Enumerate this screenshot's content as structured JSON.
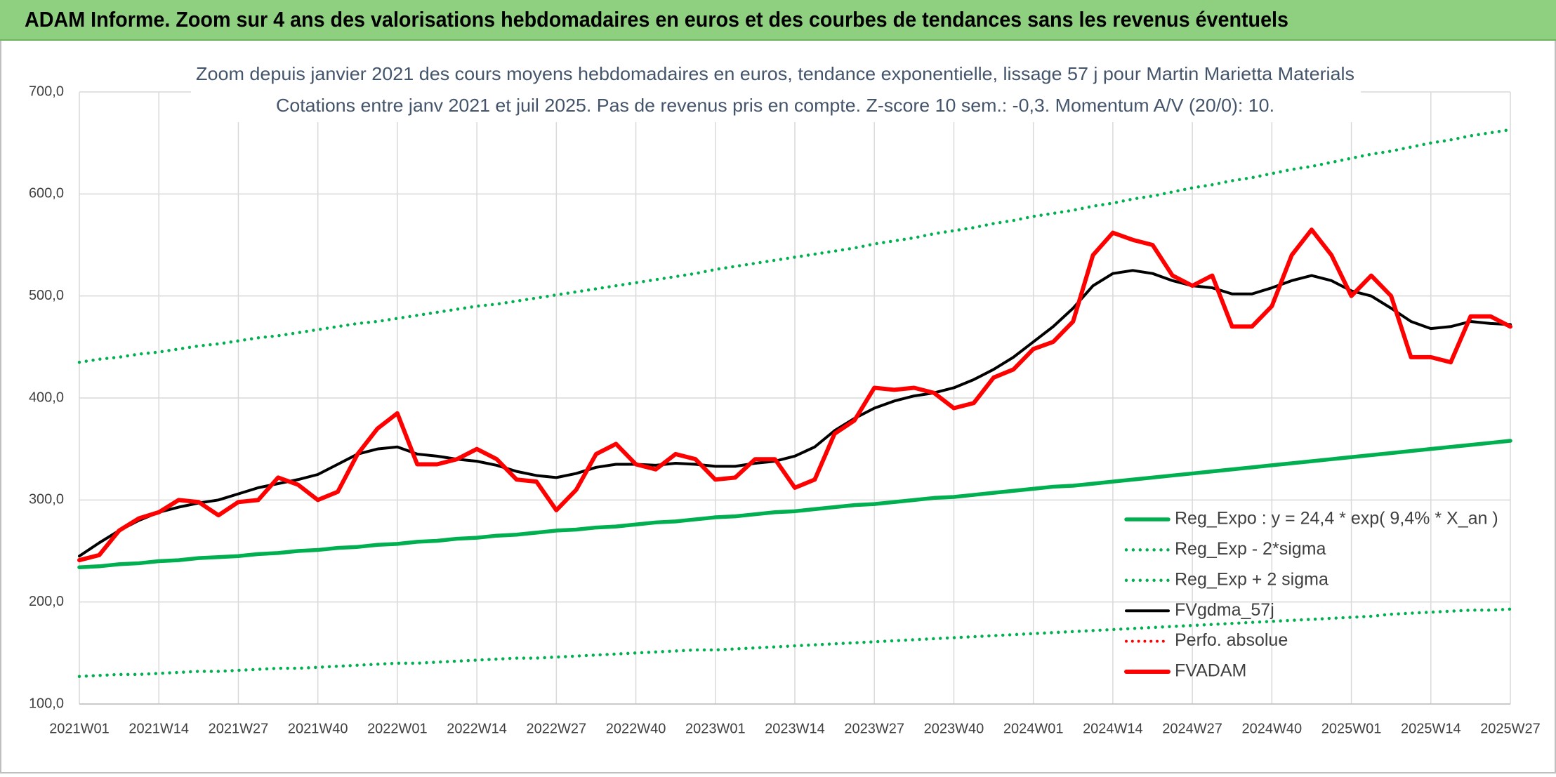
{
  "banner": {
    "text": "ADAM Informe. Zoom sur 4 ans des valorisations hebdomadaires en euros et des courbes de tendances sans les revenus éventuels"
  },
  "chart_data": {
    "type": "line",
    "title": "Zoom depuis janvier 2021 des cours moyens hebdomadaires en euros, tendance exponentielle, lissage 57 j pour Martin Marietta Materials",
    "subtitle": "Cotations entre janv 2021 et juil 2025. Pas de revenus pris en compte. Z-score 10 sem.: -0,3. Momentum A/V (20/0): 10.",
    "categories": [
      "2021W01",
      null,
      null,
      null,
      "2021W14",
      null,
      null,
      null,
      "2021W27",
      null,
      null,
      null,
      "2021W40",
      null,
      null,
      null,
      "2022W01",
      null,
      null,
      null,
      "2022W14",
      null,
      null,
      null,
      "2022W27",
      null,
      null,
      null,
      "2022W40",
      null,
      null,
      null,
      "2023W01",
      null,
      null,
      null,
      "2023W14",
      null,
      null,
      null,
      "2023W27",
      null,
      null,
      null,
      "2023W40",
      null,
      null,
      null,
      "2024W01",
      null,
      null,
      null,
      "2024W14",
      null,
      null,
      null,
      "2024W27",
      null,
      null,
      null,
      "2024W40",
      null,
      null,
      null,
      "2025W01",
      null,
      null,
      null,
      "2025W14",
      null,
      null,
      null,
      "2025W27"
    ],
    "ylim": [
      100,
      700
    ],
    "yticks": [
      {
        "value": 100,
        "label": "100,0"
      },
      {
        "value": 200,
        "label": "200,0"
      },
      {
        "value": 300,
        "label": "300,0"
      },
      {
        "value": 400,
        "label": "400,0"
      },
      {
        "value": 500,
        "label": "500,0"
      },
      {
        "value": 600,
        "label": "600,0"
      },
      {
        "value": 700,
        "label": "700,0"
      }
    ],
    "grid": true,
    "legend": "right",
    "series": [
      {
        "name": "Reg_Expo : y = 24,4 * exp( 9,4% *  X_an )",
        "color": "#00b050",
        "line_style": "solid",
        "line_width": 5.5,
        "values": [
          234,
          235,
          237,
          238,
          240,
          241,
          243,
          244,
          245,
          247,
          248,
          250,
          251,
          253,
          254,
          256,
          257,
          259,
          260,
          262,
          263,
          265,
          266,
          268,
          270,
          271,
          273,
          274,
          276,
          278,
          279,
          281,
          283,
          284,
          286,
          288,
          289,
          291,
          293,
          295,
          296,
          298,
          300,
          302,
          303,
          305,
          307,
          309,
          311,
          313,
          314,
          316,
          318,
          320,
          322,
          324,
          326,
          328,
          330,
          332,
          334,
          336,
          338,
          340,
          342,
          344,
          346,
          348,
          350,
          352,
          354,
          356,
          358
        ]
      },
      {
        "name": "Reg_Exp - 2*sigma",
        "color": "#00b050",
        "line_style": "dotted",
        "line_width": 4.5,
        "values": [
          127,
          128,
          129,
          129,
          130,
          131,
          132,
          132,
          133,
          134,
          135,
          135,
          136,
          137,
          138,
          139,
          140,
          140,
          141,
          142,
          143,
          144,
          145,
          145,
          146,
          147,
          148,
          149,
          150,
          151,
          152,
          153,
          153,
          154,
          155,
          156,
          157,
          158,
          159,
          160,
          161,
          162,
          163,
          164,
          165,
          166,
          167,
          168,
          169,
          170,
          171,
          172,
          173,
          174,
          175,
          176,
          177,
          178,
          179,
          180,
          181,
          182,
          183,
          184,
          185,
          186,
          188,
          189,
          190,
          191,
          192,
          192,
          193
        ]
      },
      {
        "name": "Reg_Exp + 2 sigma",
        "color": "#00b050",
        "line_style": "dotted",
        "line_width": 4.5,
        "values": [
          435,
          438,
          440,
          443,
          445,
          448,
          451,
          453,
          456,
          459,
          461,
          464,
          467,
          470,
          473,
          475,
          478,
          481,
          484,
          487,
          490,
          492,
          495,
          498,
          501,
          504,
          507,
          510,
          513,
          516,
          519,
          522,
          526,
          529,
          532,
          535,
          538,
          541,
          544,
          547,
          551,
          554,
          557,
          561,
          564,
          567,
          571,
          574,
          578,
          581,
          584,
          588,
          591,
          595,
          598,
          602,
          606,
          609,
          613,
          616,
          620,
          624,
          627,
          631,
          635,
          639,
          642,
          646,
          650,
          653,
          657,
          660,
          663
        ]
      },
      {
        "name": "FVgdma_57j",
        "color": "#000000",
        "line_style": "solid",
        "line_width": 4,
        "values": [
          245,
          258,
          270,
          280,
          288,
          293,
          297,
          300,
          306,
          312,
          316,
          320,
          325,
          335,
          345,
          350,
          352,
          345,
          343,
          340,
          338,
          334,
          328,
          324,
          322,
          326,
          332,
          335,
          335,
          334,
          336,
          335,
          333,
          333,
          336,
          338,
          343,
          352,
          368,
          380,
          390,
          397,
          402,
          405,
          410,
          418,
          428,
          440,
          455,
          470,
          488,
          510,
          522,
          525,
          522,
          515,
          510,
          508,
          502,
          502,
          508,
          515,
          520,
          515,
          505,
          500,
          488,
          475,
          468,
          470,
          475,
          473,
          472
        ]
      },
      {
        "name": "Perfo. absolue",
        "color": "#ff0000",
        "line_style": "dotted",
        "line_width": 4,
        "values": [
          null,
          null,
          null,
          null,
          null,
          null,
          null,
          null,
          null,
          null,
          null,
          null,
          null,
          null,
          null,
          null,
          null,
          null,
          null,
          null,
          null,
          null,
          null,
          null,
          null,
          null,
          null,
          null,
          null,
          null,
          null,
          null,
          null,
          null,
          null,
          null,
          null,
          null,
          null,
          null,
          null,
          null,
          null,
          null,
          null,
          null,
          null,
          null,
          null,
          null,
          null,
          null,
          null,
          null,
          null,
          null,
          null,
          null,
          null,
          null,
          null,
          null,
          null,
          null,
          null,
          null,
          null,
          null,
          null,
          null,
          null,
          null,
          null
        ]
      },
      {
        "name": "FVADAM",
        "color": "#ff0000",
        "line_style": "solid",
        "line_width": 6,
        "values": [
          241,
          246,
          270,
          282,
          288,
          300,
          298,
          285,
          298,
          300,
          322,
          315,
          300,
          308,
          345,
          370,
          385,
          335,
          335,
          340,
          350,
          340,
          320,
          318,
          290,
          310,
          345,
          355,
          335,
          330,
          345,
          340,
          320,
          322,
          340,
          340,
          312,
          320,
          365,
          378,
          410,
          408,
          410,
          405,
          390,
          395,
          420,
          428,
          448,
          455,
          475,
          540,
          562,
          555,
          550,
          520,
          510,
          520,
          470,
          470,
          490,
          540,
          565,
          540,
          500,
          520,
          500,
          440,
          440,
          435,
          480,
          480,
          470
        ]
      }
    ]
  }
}
